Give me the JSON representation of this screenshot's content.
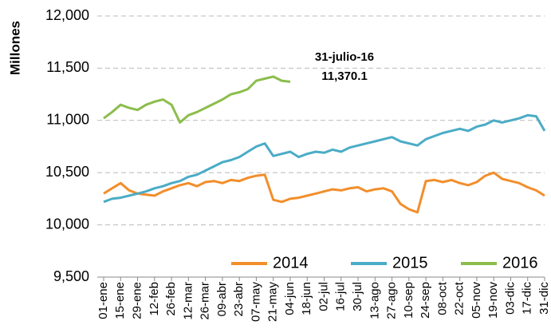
{
  "chart_data": {
    "type": "line",
    "y_label": "Millones",
    "annotations": [
      "31-julio-16",
      "11,370.1"
    ],
    "categories": [
      "01-ene",
      null,
      "15-ene",
      null,
      "29-ene",
      null,
      "12-feb",
      null,
      "26-feb",
      null,
      "12-mar",
      null,
      "26-mar",
      null,
      "09-abr",
      null,
      "23-abr",
      null,
      "07-may",
      null,
      "21-may",
      null,
      "04-jun",
      null,
      "18-jun",
      null,
      "02-jul",
      null,
      "16-jul",
      null,
      "30-jul",
      null,
      "13-ago",
      null,
      "27-ago",
      null,
      "10-sep",
      null,
      "24-sep",
      null,
      "08-oct",
      null,
      "22-oct",
      null,
      "05-nov",
      null,
      "19-nov",
      null,
      "03-dic",
      null,
      "17-dic",
      null,
      "31-dic"
    ],
    "series": [
      {
        "name": "2014",
        "color": "#f28e2b",
        "values": [
          10300,
          10350,
          10400,
          10330,
          10300,
          10290,
          10280,
          10320,
          10350,
          10380,
          10400,
          10370,
          10410,
          10420,
          10400,
          10430,
          10420,
          10450,
          10470,
          10480,
          10240,
          10220,
          10250,
          10260,
          10280,
          10300,
          10320,
          10340,
          10330,
          10350,
          10360,
          10320,
          10340,
          10350,
          10320,
          10200,
          10150,
          10120,
          10420,
          10430,
          10410,
          10430,
          10400,
          10380,
          10410,
          10470,
          10500,
          10440,
          10420,
          10400,
          10360,
          10330,
          10280
        ]
      },
      {
        "name": "2015",
        "color": "#4bacc6",
        "values": [
          10220,
          10250,
          10260,
          10280,
          10300,
          10320,
          10350,
          10370,
          10400,
          10420,
          10460,
          10480,
          10520,
          10560,
          10600,
          10620,
          10650,
          10700,
          10750,
          10780,
          10660,
          10680,
          10700,
          10650,
          10680,
          10700,
          10690,
          10720,
          10700,
          10740,
          10760,
          10780,
          10800,
          10820,
          10840,
          10800,
          10780,
          10760,
          10820,
          10850,
          10880,
          10900,
          10920,
          10900,
          10940,
          10960,
          11000,
          10980,
          11000,
          11020,
          11050,
          11040,
          10900
        ]
      },
      {
        "name": "2016",
        "color": "#8cbd4c",
        "values": [
          11020,
          11080,
          11150,
          11120,
          11100,
          11150,
          11180,
          11200,
          11150,
          10980,
          11050,
          11080,
          11120,
          11160,
          11200,
          11250,
          11270,
          11300,
          11380,
          11400,
          11420,
          11380,
          11370,
          null,
          null,
          null,
          null,
          null,
          null,
          null,
          null,
          null,
          null,
          null,
          null,
          null,
          null,
          null,
          null,
          null,
          null,
          null,
          null,
          null,
          null,
          null,
          null,
          null,
          null,
          null,
          null,
          null,
          null
        ]
      }
    ],
    "ylim": [
      9500,
      12000
    ],
    "yticks": [
      {
        "value": 9500,
        "label": "9,500"
      },
      {
        "value": 10000,
        "label": "10,000"
      },
      {
        "value": 10500,
        "label": "10,500"
      },
      {
        "value": 11000,
        "label": "11,000"
      },
      {
        "value": 11500,
        "label": "11,500"
      },
      {
        "value": 12000,
        "label": "12,000"
      }
    ],
    "grid": true,
    "grid_style": "dashed",
    "legend": "lower right"
  }
}
